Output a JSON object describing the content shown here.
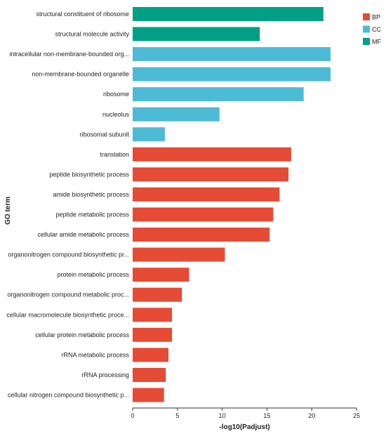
{
  "chart_data": {
    "type": "bar",
    "orientation": "horizontal",
    "xlabel": "-log10(Padjust)",
    "ylabel": "GO term",
    "xlim": [
      0,
      25
    ],
    "xticks": [
      0,
      5,
      10,
      15,
      20,
      25
    ],
    "grid": false,
    "legend_position": "top-right",
    "groups": [
      {
        "name": "BP",
        "color": "#e64b35"
      },
      {
        "name": "CC",
        "color": "#4dbbd5"
      },
      {
        "name": "MF",
        "color": "#00a087"
      }
    ],
    "categories": [
      "structural constituent of ribosome",
      "structural molecule activity",
      "intracellular non-membrane-bounded org...",
      "non-membrane-bounded organelle",
      "ribosome",
      "nucleolus",
      "ribosomal subunit",
      "translation",
      "peptide biosynthetic process",
      "amide biosynthetic process",
      "peptide metabolic process",
      "cellular amide metabolic process",
      "organonitrogen compound biosynthetic pr...",
      "protein metabolic process",
      "organonitrogen compound metabolic proc...",
      "cellular macromolecule biosynthetic proce...",
      "cellular protein metabolic process",
      "rRNA metabolic process",
      "rRNA processing",
      "cellular nitrogen compound biosynthetic p..."
    ],
    "values": [
      21.3,
      14.2,
      22.1,
      22.1,
      19.1,
      9.7,
      3.6,
      17.7,
      17.4,
      16.4,
      15.7,
      15.3,
      10.3,
      6.3,
      5.5,
      4.4,
      4.4,
      4.0,
      3.7,
      3.5
    ],
    "category_group": [
      "MF",
      "MF",
      "CC",
      "CC",
      "CC",
      "CC",
      "CC",
      "BP",
      "BP",
      "BP",
      "BP",
      "BP",
      "BP",
      "BP",
      "BP",
      "BP",
      "BP",
      "BP",
      "BP",
      "BP"
    ]
  }
}
